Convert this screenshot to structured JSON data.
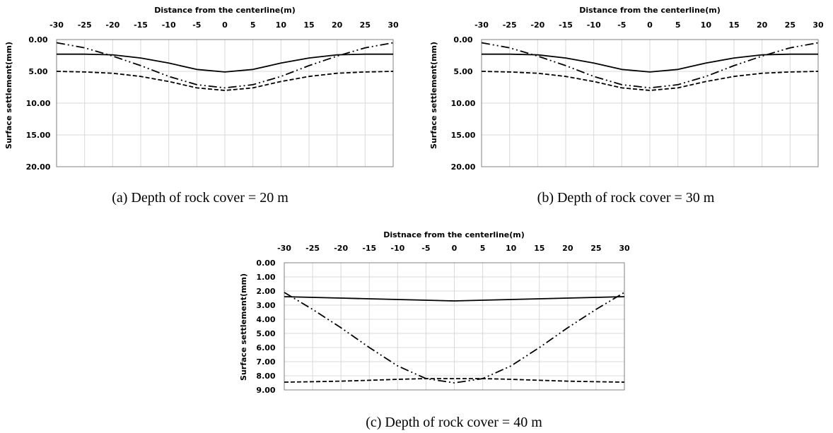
{
  "chart_data": [
    {
      "type": "line",
      "xlabel": "Distance from the centerline(m)",
      "ylabel": "Surface settlement(mm)",
      "caption": "(a) Depth of rock cover = 20 m",
      "xlim": [
        -30,
        30
      ],
      "ylim": [
        0,
        20
      ],
      "y_inverted": true,
      "x_axis_position": "top",
      "grid": true,
      "xticks": [
        "-30",
        "-25",
        "-20",
        "-15",
        "-10",
        "-5",
        "0",
        "5",
        "10",
        "15",
        "20",
        "25",
        "30"
      ],
      "yticks": [
        "0.00",
        "5.00",
        "10.00",
        "15.00",
        "20.00"
      ],
      "x": [
        -30,
        -25,
        -20,
        -15,
        -10,
        -5,
        0,
        5,
        10,
        15,
        20,
        25,
        30
      ],
      "series": [
        {
          "style": "solid",
          "values": [
            2.3,
            2.3,
            2.4,
            2.9,
            3.7,
            4.7,
            5.1,
            4.7,
            3.7,
            2.9,
            2.4,
            2.3,
            2.3
          ]
        },
        {
          "style": "dashed",
          "values": [
            5.0,
            5.1,
            5.3,
            5.8,
            6.6,
            7.6,
            8.0,
            7.6,
            6.6,
            5.8,
            5.3,
            5.1,
            5.0
          ]
        },
        {
          "style": "dash-dot-dot",
          "values": [
            0.5,
            1.3,
            2.6,
            4.1,
            5.8,
            7.1,
            7.6,
            7.1,
            5.8,
            4.1,
            2.6,
            1.3,
            0.5
          ]
        }
      ]
    },
    {
      "type": "line",
      "xlabel": "Distance from the centerline(m)",
      "ylabel": "Surface settlement(mm)",
      "caption": "(b) Depth of rock cover = 30 m",
      "xlim": [
        -30,
        30
      ],
      "ylim": [
        0,
        20
      ],
      "y_inverted": true,
      "x_axis_position": "top",
      "grid": true,
      "xticks": [
        "-30",
        "-25",
        "-20",
        "-15",
        "-10",
        "-5",
        "0",
        "5",
        "10",
        "15",
        "20",
        "25",
        "30"
      ],
      "yticks": [
        "0.00",
        "5.00",
        "10.00",
        "15.00",
        "20.00"
      ],
      "x": [
        -30,
        -25,
        -20,
        -15,
        -10,
        -5,
        0,
        5,
        10,
        15,
        20,
        25,
        30
      ],
      "series": [
        {
          "style": "solid",
          "values": [
            2.3,
            2.3,
            2.4,
            2.9,
            3.7,
            4.7,
            5.1,
            4.7,
            3.7,
            2.9,
            2.4,
            2.3,
            2.3
          ]
        },
        {
          "style": "dashed",
          "values": [
            5.0,
            5.1,
            5.3,
            5.8,
            6.6,
            7.6,
            8.0,
            7.6,
            6.6,
            5.8,
            5.3,
            5.1,
            5.0
          ]
        },
        {
          "style": "dash-dot-dot",
          "values": [
            0.5,
            1.3,
            2.6,
            4.1,
            5.8,
            7.1,
            7.6,
            7.1,
            5.8,
            4.1,
            2.6,
            1.3,
            0.5
          ]
        }
      ]
    },
    {
      "type": "line",
      "xlabel": "Distnace from the centerline(m)",
      "ylabel": "Surface settlement(mm)",
      "caption": "(c) Depth of rock cover = 40 m",
      "xlim": [
        -30,
        30
      ],
      "ylim": [
        0,
        9
      ],
      "y_inverted": true,
      "x_axis_position": "top",
      "grid": true,
      "xticks": [
        "-30",
        "-25",
        "-20",
        "-15",
        "-10",
        "-5",
        "0",
        "5",
        "10",
        "15",
        "20",
        "25",
        "30"
      ],
      "yticks": [
        "0.00",
        "1.00",
        "2.00",
        "3.00",
        "4.00",
        "5.00",
        "6.00",
        "7.00",
        "8.00",
        "9.00"
      ],
      "x": [
        -30,
        -25,
        -20,
        -15,
        -10,
        -5,
        0,
        5,
        10,
        15,
        20,
        25,
        30
      ],
      "series": [
        {
          "style": "solid",
          "values": [
            2.4,
            2.45,
            2.5,
            2.55,
            2.6,
            2.65,
            2.7,
            2.65,
            2.6,
            2.55,
            2.5,
            2.45,
            2.4
          ]
        },
        {
          "style": "dashed",
          "values": [
            8.45,
            8.42,
            8.38,
            8.32,
            8.25,
            8.2,
            8.2,
            8.2,
            8.25,
            8.32,
            8.38,
            8.42,
            8.45
          ]
        },
        {
          "style": "dash-dot-dot",
          "values": [
            2.1,
            3.3,
            4.6,
            6.0,
            7.3,
            8.2,
            8.5,
            8.2,
            7.3,
            6.0,
            4.6,
            3.3,
            2.1
          ]
        }
      ]
    }
  ]
}
